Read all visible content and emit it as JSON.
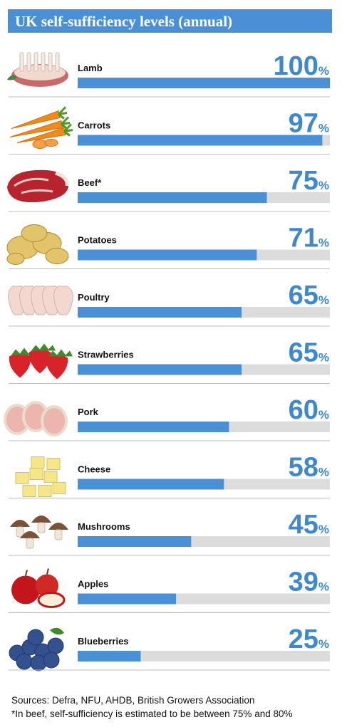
{
  "title": "UK self-sufficiency levels (annual)",
  "colors": {
    "accent": "#4a90d6",
    "track": "#dcdcdc",
    "divider": "#bdbdbd",
    "value_text": "#3f88cf"
  },
  "chart_data": {
    "type": "bar",
    "orientation": "horizontal",
    "title": "UK self-sufficiency levels (annual)",
    "unit": "%",
    "xlim": [
      0,
      100
    ],
    "grid": false,
    "legend": "none",
    "categories": [
      "Lamb",
      "Carrots",
      "Beef*",
      "Potatoes",
      "Poultry",
      "Strawberries",
      "Pork",
      "Cheese",
      "Mushrooms",
      "Apples",
      "Blueberries"
    ],
    "values": [
      100,
      97,
      75,
      71,
      65,
      65,
      60,
      58,
      45,
      39,
      25
    ],
    "icons": [
      "lamb-icon",
      "carrots-icon",
      "beef-icon",
      "potatoes-icon",
      "poultry-icon",
      "strawberries-icon",
      "pork-icon",
      "cheese-icon",
      "mushrooms-icon",
      "apples-icon",
      "blueberries-icon"
    ]
  },
  "footer": {
    "sources": "Sources: Defra, NFU, AHDB, British Growers Association",
    "note": "*In beef, self-sufficiency is estimated to be between 75% and 80%"
  }
}
